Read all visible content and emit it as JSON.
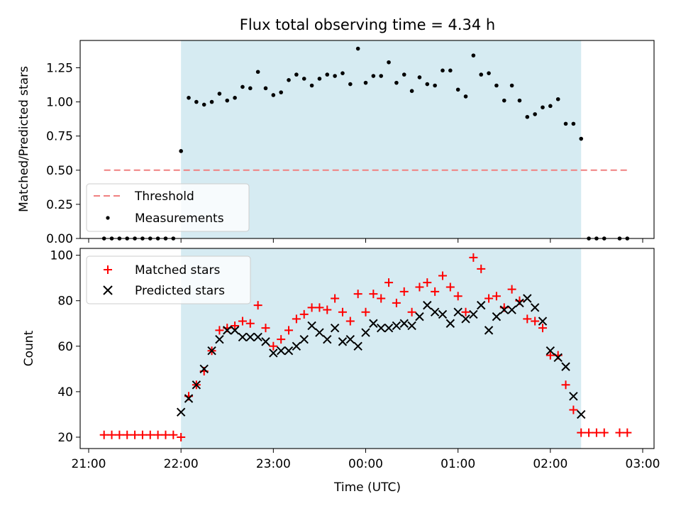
{
  "title": "Flux total observing time = 4.34 h",
  "colors": {
    "threshold": "#f08080",
    "measurement": "#000000",
    "matched": "#ff0000",
    "predicted": "#000000",
    "span": "#add8e6"
  },
  "chart_data": [
    {
      "type": "scatter",
      "ylabel": "Matched/Predicted stars",
      "ylim": [
        0,
        1.45
      ],
      "yticks": [
        "0.00",
        "0.25",
        "0.50",
        "0.75",
        "1.00",
        "1.25"
      ],
      "shaded_span": [
        "22:00",
        "02:20"
      ],
      "legend_position": "lower-left",
      "legend": [
        "Threshold",
        "Measurements"
      ],
      "threshold": {
        "name": "Threshold",
        "y": 0.5,
        "x_range": [
          "21:10",
          "02:50"
        ]
      },
      "series": [
        {
          "name": "Measurements",
          "x": [
            "21:10",
            "21:15",
            "21:20",
            "21:25",
            "21:30",
            "21:35",
            "21:40",
            "21:45",
            "21:50",
            "21:55",
            "22:00",
            "22:05",
            "22:10",
            "22:15",
            "22:20",
            "22:25",
            "22:30",
            "22:35",
            "22:40",
            "22:45",
            "22:50",
            "22:55",
            "23:00",
            "23:05",
            "23:10",
            "23:15",
            "23:20",
            "23:25",
            "23:30",
            "23:35",
            "23:40",
            "23:45",
            "23:50",
            "23:55",
            "00:00",
            "00:05",
            "00:10",
            "00:15",
            "00:20",
            "00:25",
            "00:30",
            "00:35",
            "00:40",
            "00:45",
            "00:50",
            "00:55",
            "01:00",
            "01:05",
            "01:10",
            "01:15",
            "01:20",
            "01:25",
            "01:30",
            "01:35",
            "01:40",
            "01:45",
            "01:50",
            "01:55",
            "02:00",
            "02:05",
            "02:10",
            "02:15",
            "02:20",
            "02:25",
            "02:30",
            "02:35",
            "02:45",
            "02:50"
          ],
          "y": [
            0,
            0,
            0,
            0,
            0,
            0,
            0,
            0,
            0,
            0,
            0.64,
            1.03,
            1.0,
            0.98,
            1.0,
            1.06,
            1.01,
            1.03,
            1.11,
            1.1,
            1.22,
            1.1,
            1.05,
            1.07,
            1.16,
            1.2,
            1.17,
            1.12,
            1.17,
            1.2,
            1.19,
            1.21,
            1.13,
            1.39,
            1.14,
            1.19,
            1.19,
            1.29,
            1.14,
            1.2,
            1.08,
            1.18,
            1.13,
            1.12,
            1.23,
            1.23,
            1.09,
            1.04,
            1.34,
            1.2,
            1.21,
            1.12,
            1.01,
            1.12,
            1.01,
            0.89,
            0.91,
            0.96,
            0.97,
            1.02,
            0.84,
            0.84,
            0.73,
            0,
            0,
            0,
            0,
            0
          ]
        }
      ]
    },
    {
      "type": "scatter",
      "ylabel": "Count",
      "xlabel": "Time (UTC)",
      "ylim": [
        15,
        103
      ],
      "yticks": [
        "20",
        "40",
        "60",
        "80",
        "100"
      ],
      "xticks": [
        "21:00",
        "22:00",
        "23:00",
        "00:00",
        "01:00",
        "02:00",
        "03:00"
      ],
      "shaded_span": [
        "22:00",
        "02:20"
      ],
      "legend_position": "upper-left",
      "legend": [
        "Matched stars",
        "Predicted stars"
      ],
      "series": [
        {
          "name": "Matched stars",
          "x": [
            "21:10",
            "21:15",
            "21:20",
            "21:25",
            "21:30",
            "21:35",
            "21:40",
            "21:45",
            "21:50",
            "21:55",
            "22:00",
            "22:05",
            "22:10",
            "22:15",
            "22:20",
            "22:25",
            "22:30",
            "22:35",
            "22:40",
            "22:45",
            "22:50",
            "22:55",
            "23:00",
            "23:05",
            "23:10",
            "23:15",
            "23:20",
            "23:25",
            "23:30",
            "23:35",
            "23:40",
            "23:45",
            "23:50",
            "23:55",
            "00:00",
            "00:05",
            "00:10",
            "00:15",
            "00:20",
            "00:25",
            "00:30",
            "00:35",
            "00:40",
            "00:45",
            "00:50",
            "00:55",
            "01:00",
            "01:05",
            "01:10",
            "01:15",
            "01:20",
            "01:25",
            "01:30",
            "01:35",
            "01:40",
            "01:45",
            "01:50",
            "01:55",
            "02:00",
            "02:05",
            "02:10",
            "02:15",
            "02:20",
            "02:25",
            "02:30",
            "02:35",
            "02:45",
            "02:50"
          ],
          "y": [
            21,
            21,
            21,
            21,
            21,
            21,
            21,
            21,
            21,
            21,
            20,
            38,
            43,
            49,
            58,
            67,
            68,
            69,
            71,
            70,
            78,
            68,
            60,
            63,
            67,
            72,
            74,
            77,
            77,
            76,
            81,
            75,
            71,
            83,
            75,
            83,
            81,
            88,
            79,
            84,
            75,
            86,
            88,
            84,
            91,
            86,
            82,
            75,
            99,
            94,
            81,
            82,
            77,
            85,
            80,
            72,
            71,
            68,
            56,
            56,
            43,
            32,
            22,
            22,
            22,
            22,
            22,
            22
          ]
        },
        {
          "name": "Predicted stars",
          "x": [
            "22:00",
            "22:05",
            "22:10",
            "22:15",
            "22:20",
            "22:25",
            "22:30",
            "22:35",
            "22:40",
            "22:45",
            "22:50",
            "22:55",
            "23:00",
            "23:05",
            "23:10",
            "23:15",
            "23:20",
            "23:25",
            "23:30",
            "23:35",
            "23:40",
            "23:45",
            "23:50",
            "23:55",
            "00:00",
            "00:05",
            "00:10",
            "00:15",
            "00:20",
            "00:25",
            "00:30",
            "00:35",
            "00:40",
            "00:45",
            "00:50",
            "00:55",
            "01:00",
            "01:05",
            "01:10",
            "01:15",
            "01:20",
            "01:25",
            "01:30",
            "01:35",
            "01:40",
            "01:45",
            "01:50",
            "01:55",
            "02:00",
            "02:05",
            "02:10",
            "02:15",
            "02:20"
          ],
          "y": [
            31,
            37,
            43,
            50,
            58,
            63,
            67,
            67,
            64,
            64,
            64,
            62,
            57,
            58,
            58,
            60,
            63,
            69,
            66,
            63,
            68,
            62,
            63,
            60,
            66,
            70,
            68,
            68,
            69,
            70,
            69,
            73,
            78,
            75,
            74,
            70,
            75,
            72,
            74,
            78,
            67,
            73,
            76,
            76,
            79,
            81,
            77,
            71,
            58,
            55,
            51,
            38,
            30
          ]
        }
      ]
    }
  ]
}
